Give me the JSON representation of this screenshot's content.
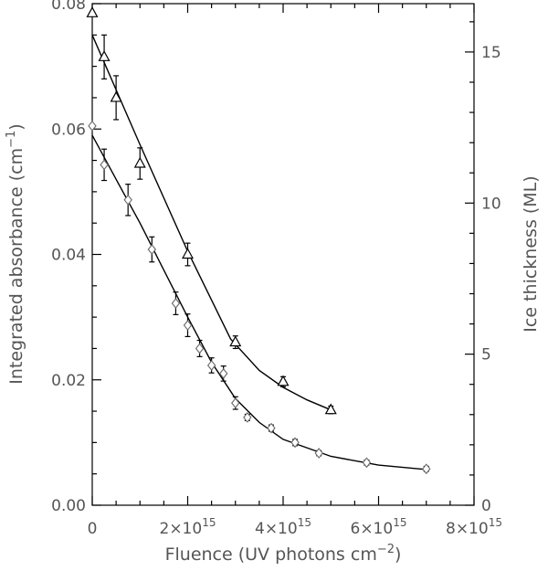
{
  "chart_data": {
    "type": "scatter",
    "title": "",
    "xlabel": "Fluence (UV photons cm",
    "xlabel_sup": "−2",
    "xlabel_close": ")",
    "ylabel": "Integrated absorbance (cm",
    "ylabel_sup": "−1",
    "ylabel_close": ")",
    "y2label": "Ice thickness (ML)",
    "xlim": [
      0,
      8000000000000000.0
    ],
    "ylim": [
      0,
      0.08
    ],
    "y2lim": [
      0,
      16.6
    ],
    "x_ticks": [
      {
        "value": 0,
        "label": "0"
      },
      {
        "value": 2000000000000000.0,
        "label": "2×10",
        "exp": "15"
      },
      {
        "value": 4000000000000000.0,
        "label": "4×10",
        "exp": "15"
      },
      {
        "value": 6000000000000000.0,
        "label": "6×10",
        "exp": "15"
      },
      {
        "value": 8000000000000000.0,
        "label": "8×10",
        "exp": "15"
      }
    ],
    "y_ticks": [
      {
        "value": 0,
        "label": "0.00"
      },
      {
        "value": 0.02,
        "label": "0.02"
      },
      {
        "value": 0.04,
        "label": "0.04"
      },
      {
        "value": 0.06,
        "label": "0.06"
      },
      {
        "value": 0.08,
        "label": "0.08"
      }
    ],
    "y2_ticks": [
      {
        "value": 0,
        "label": "0"
      },
      {
        "value": 5,
        "label": "5"
      },
      {
        "value": 10,
        "label": "10"
      },
      {
        "value": 15,
        "label": "15"
      }
    ],
    "grid": false,
    "series": [
      {
        "marker": "triangle",
        "color": "#000000",
        "points": [
          {
            "x": 0,
            "y": 0.0785,
            "err": 0
          },
          {
            "x": 250000000000000.0,
            "y": 0.0715,
            "err": 0.0035
          },
          {
            "x": 500000000000000.0,
            "y": 0.065,
            "err": 0.0035
          },
          {
            "x": 1000000000000000.0,
            "y": 0.0545,
            "err": 0.0025
          },
          {
            "x": 2000000000000000.0,
            "y": 0.04,
            "err": 0.0018
          },
          {
            "x": 3000000000000000.0,
            "y": 0.026,
            "err": 0.001
          },
          {
            "x": 4000000000000000.0,
            "y": 0.0197,
            "err": 0.0008
          },
          {
            "x": 5000000000000000.0,
            "y": 0.0152,
            "err": 0.0006
          }
        ],
        "fit": [
          {
            "x": 0,
            "y": 0.075
          },
          {
            "x": 1000000000000000.0,
            "y": 0.0575
          },
          {
            "x": 2000000000000000.0,
            "y": 0.0405
          },
          {
            "x": 2900000000000000.0,
            "y": 0.0265
          },
          {
            "x": 3500000000000000.0,
            "y": 0.0215
          },
          {
            "x": 4000000000000000.0,
            "y": 0.0188
          },
          {
            "x": 4500000000000000.0,
            "y": 0.0168
          },
          {
            "x": 5000000000000000.0,
            "y": 0.0152
          }
        ]
      },
      {
        "marker": "diamond",
        "color": "#666666",
        "points": [
          {
            "x": 0,
            "y": 0.0605,
            "err": 0
          },
          {
            "x": 250000000000000.0,
            "y": 0.0543,
            "err": 0.0025
          },
          {
            "x": 750000000000000.0,
            "y": 0.0487,
            "err": 0.0025
          },
          {
            "x": 1250000000000000.0,
            "y": 0.0408,
            "err": 0.002
          },
          {
            "x": 1750000000000000.0,
            "y": 0.0322,
            "err": 0.0018
          },
          {
            "x": 2000000000000000.0,
            "y": 0.0287,
            "err": 0.0018
          },
          {
            "x": 2250000000000000.0,
            "y": 0.025,
            "err": 0.0013
          },
          {
            "x": 2500000000000000.0,
            "y": 0.0223,
            "err": 0.0012
          },
          {
            "x": 2750000000000000.0,
            "y": 0.021,
            "err": 0.0012
          },
          {
            "x": 3000000000000000.0,
            "y": 0.0163,
            "err": 0.001
          },
          {
            "x": 3250000000000000.0,
            "y": 0.014,
            "err": 0.0005
          },
          {
            "x": 3750000000000000.0,
            "y": 0.0123,
            "err": 0.0005
          },
          {
            "x": 4250000000000000.0,
            "y": 0.01,
            "err": 0.0005
          },
          {
            "x": 4750000000000000.0,
            "y": 0.0083,
            "err": 0.0004
          },
          {
            "x": 5750000000000000.0,
            "y": 0.0068,
            "err": 0.0004
          },
          {
            "x": 7000000000000000.0,
            "y": 0.0058,
            "err": 0.0004
          }
        ],
        "fit": [
          {
            "x": 0,
            "y": 0.059
          },
          {
            "x": 500000000000000.0,
            "y": 0.052
          },
          {
            "x": 1000000000000000.0,
            "y": 0.045
          },
          {
            "x": 1500000000000000.0,
            "y": 0.0375
          },
          {
            "x": 2000000000000000.0,
            "y": 0.03
          },
          {
            "x": 2500000000000000.0,
            "y": 0.0228
          },
          {
            "x": 3000000000000000.0,
            "y": 0.017
          },
          {
            "x": 3500000000000000.0,
            "y": 0.0132
          },
          {
            "x": 4000000000000000.0,
            "y": 0.0105
          },
          {
            "x": 5000000000000000.0,
            "y": 0.0078
          },
          {
            "x": 6000000000000000.0,
            "y": 0.0064
          },
          {
            "x": 7000000000000000.0,
            "y": 0.0057
          }
        ]
      }
    ]
  }
}
